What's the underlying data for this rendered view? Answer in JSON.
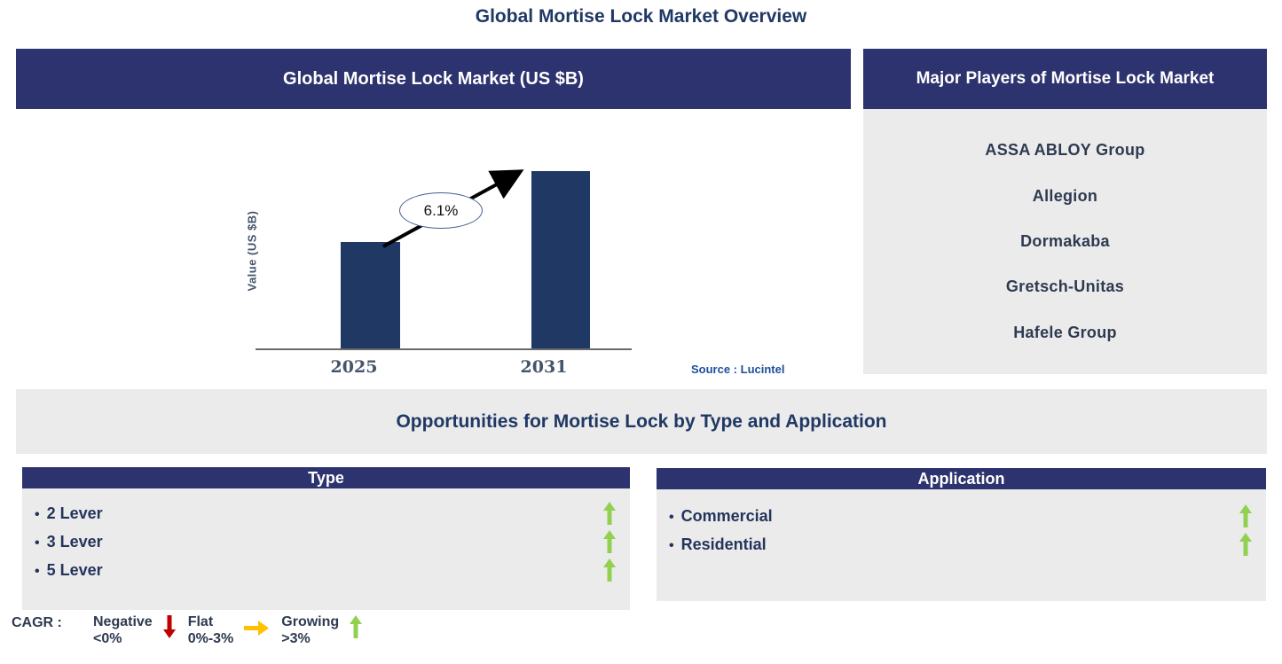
{
  "page_title": "Global Mortise Lock Market Overview",
  "market_chart": {
    "header": "Global Mortise Lock Market (US $B)",
    "ylabel": "Value (US $B)",
    "cagr_label": "6.1%",
    "source": "Source : Lucintel"
  },
  "chart_data": {
    "type": "bar",
    "title": "Global Mortise Lock Market (US $B)",
    "categories": [
      "2025",
      "2031"
    ],
    "values_relative": [
      0.6,
      1.0
    ],
    "ylabel": "Value (US $B)",
    "xlabel": "",
    "annotation": "6.1% CAGR growth arrow from 2025 bar to 2031 bar",
    "bar_color": "#1F3864",
    "axis_numeric_labels": false,
    "grid": false,
    "legend": false
  },
  "major_players": {
    "header": "Major Players of Mortise Lock Market",
    "items": [
      "ASSA ABLOY Group",
      "Allegion",
      "Dormakaba",
      "Gretsch-Unitas",
      "Hafele Group"
    ]
  },
  "opportunities": {
    "title": "Opportunities for Mortise Lock by Type and Application"
  },
  "type_panel": {
    "header": "Type",
    "items": [
      {
        "label": "2 Lever",
        "trend": "growing"
      },
      {
        "label": "3 Lever",
        "trend": "growing"
      },
      {
        "label": "5 Lever",
        "trend": "growing"
      }
    ]
  },
  "application_panel": {
    "header": "Application",
    "items": [
      {
        "label": "Commercial",
        "trend": "growing"
      },
      {
        "label": "Residential",
        "trend": "growing"
      }
    ]
  },
  "legend": {
    "prefix": "CAGR :",
    "items": [
      {
        "label": "Negative",
        "range": "<0%",
        "direction": "down",
        "color": "#C00000"
      },
      {
        "label": "Flat",
        "range": "0%-3%",
        "direction": "right",
        "color": "#FFC000"
      },
      {
        "label": "Growing",
        "range": ">3%",
        "direction": "up",
        "color": "#92D050"
      }
    ]
  },
  "ui": {
    "bullet": "•"
  },
  "colors": {
    "navy_header": "#2D336E",
    "bar_navy": "#1F3864",
    "panel_gray": "#EBEBEB",
    "title_navy": "#1F3864",
    "growing_green": "#92D050",
    "negative_red": "#C00000",
    "flat_amber": "#FFC000",
    "source_blue": "#1F4E9C"
  }
}
